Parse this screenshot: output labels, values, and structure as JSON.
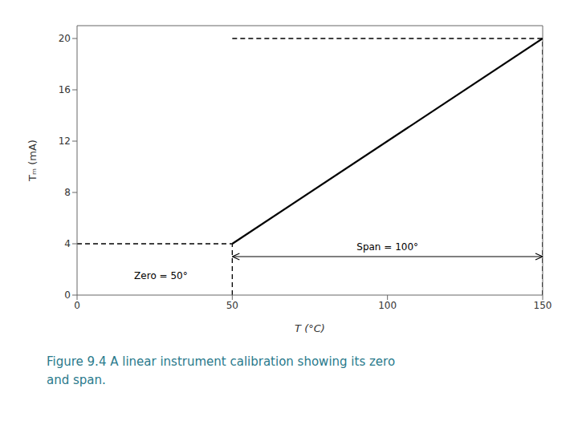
{
  "chart_data": {
    "type": "line",
    "xlabel": "T (°C)",
    "ylabel": "Tₘ (mA)",
    "xlim": [
      0,
      150
    ],
    "ylim": [
      0,
      21
    ],
    "xticks": [
      0,
      50,
      100,
      150
    ],
    "yticks": [
      0,
      4,
      8,
      12,
      16,
      20
    ],
    "grid": false,
    "series": [
      {
        "x": [
          50,
          150
        ],
        "values": [
          4,
          20
        ],
        "color": "#000000",
        "line_style": "solid"
      },
      {
        "x": [
          50,
          150
        ],
        "values": [
          20,
          20
        ],
        "color": "#000000",
        "line_style": "dashed"
      },
      {
        "x": [
          0,
          50
        ],
        "values": [
          4,
          4
        ],
        "color": "#000000",
        "line_style": "dashed"
      },
      {
        "x": [
          50,
          50
        ],
        "values": [
          0,
          4
        ],
        "color": "#000000",
        "line_style": "dashed"
      },
      {
        "x": [
          150,
          150
        ],
        "values": [
          0,
          20
        ],
        "color": "#000000",
        "line_style": "dashed"
      }
    ],
    "annotations": [
      {
        "text": "Zero = 50°",
        "x": 27,
        "y": 1.5,
        "position": "center"
      },
      {
        "text": "Span = 100°",
        "x": 100,
        "y": 3.4,
        "position": "top"
      }
    ],
    "arrows": [
      {
        "x1": 50,
        "x2": 150,
        "y": 3.0,
        "style": "double"
      }
    ],
    "caption": {
      "text": "Figure 9.4 A linear instrument calibration showing its zero\nand span.",
      "color": "#2a7a8c"
    }
  }
}
